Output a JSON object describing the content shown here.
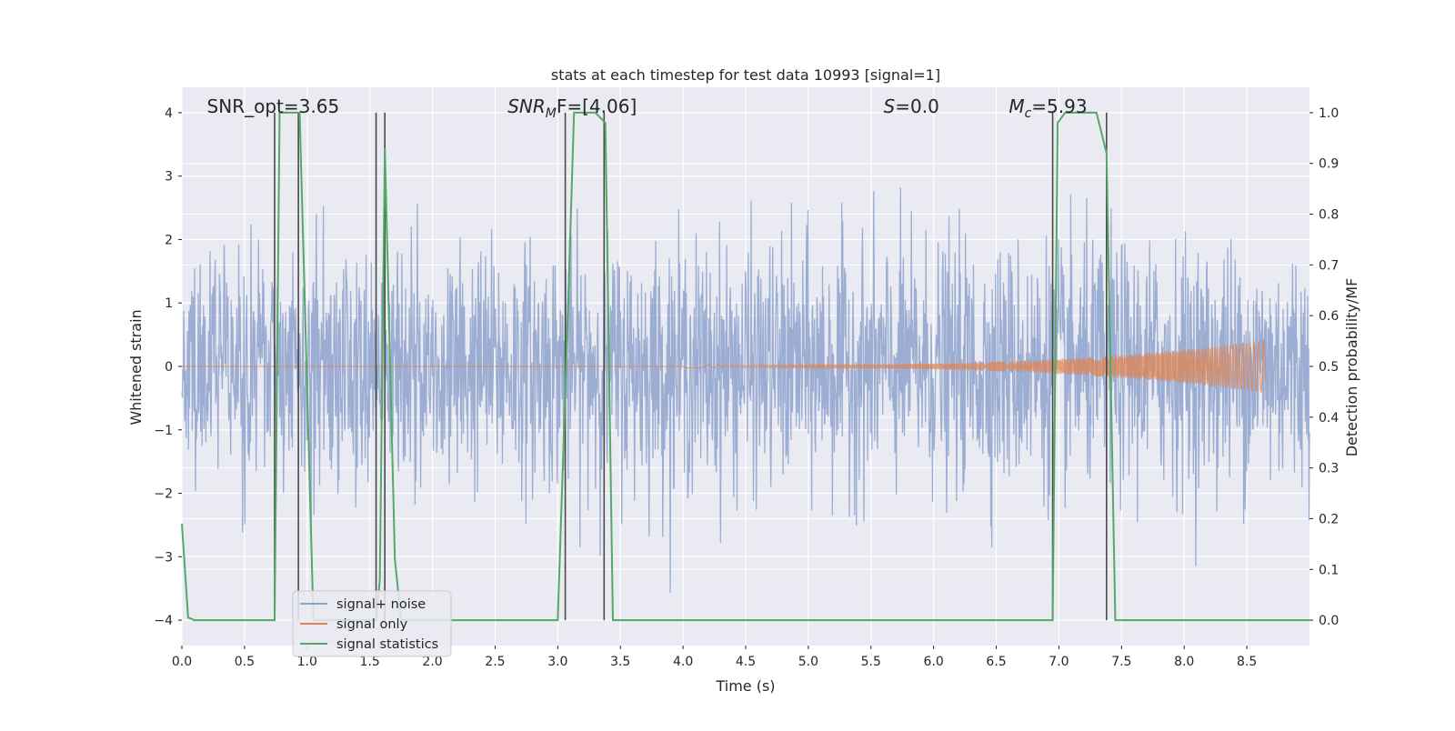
{
  "chart_data": {
    "type": "line",
    "title": "stats at each timestep for test data 10993 [signal=1]",
    "xlabel": "Time (s)",
    "ylabel_left": "Whitened strain",
    "ylabel_right": "Detection probability/MF",
    "xlim": [
      0.0,
      9.0
    ],
    "ylim_left": [
      -4.4,
      4.4
    ],
    "ylim_right": [
      -0.05,
      1.05
    ],
    "xticks": [
      "0.0",
      "0.5",
      "1.0",
      "1.5",
      "2.0",
      "2.5",
      "3.0",
      "3.5",
      "4.0",
      "4.5",
      "5.0",
      "5.5",
      "6.0",
      "6.5",
      "7.0",
      "7.5",
      "8.0",
      "8.5"
    ],
    "yticks_left": [
      "4",
      "3",
      "2",
      "1",
      "0",
      "−1",
      "−2",
      "−3",
      "−4"
    ],
    "yticks_right": [
      "1.0",
      "0.9",
      "0.8",
      "0.7",
      "0.6",
      "0.5",
      "0.4",
      "0.3",
      "0.2",
      "0.1",
      "0.0"
    ],
    "grid": true,
    "legend_position": "lower-left",
    "annotations": [
      {
        "text": "SNR_opt=3.65",
        "x": 0.2
      },
      {
        "main": "SNR",
        "sub": "M",
        "rest": "F=[4.06]",
        "x": 2.6
      },
      {
        "main": "S",
        "rest": "=0.0",
        "x": 5.6
      },
      {
        "main": "M",
        "sub": "c",
        "rest": "=5.93",
        "x": 6.6
      }
    ],
    "series": [
      {
        "name": "signal+ noise",
        "color": "#8da2cc",
        "kind": "noise",
        "envelope_std": 1.0,
        "x_range": [
          0.0,
          9.0
        ]
      },
      {
        "name": "signal only",
        "color": "#dd8452",
        "kind": "chirp",
        "x_start": 4.0,
        "x_end": 8.65,
        "max_amp": 0.4
      },
      {
        "name": "signal statistics",
        "color": "#55a868",
        "kind": "probability",
        "x": [
          0.0,
          0.05,
          0.1,
          0.74,
          0.78,
          0.82,
          0.9,
          0.94,
          1.05,
          1.55,
          1.58,
          1.62,
          1.7,
          1.75,
          3.0,
          3.08,
          3.13,
          3.3,
          3.38,
          3.44,
          6.95,
          6.99,
          7.05,
          7.3,
          7.38,
          7.45,
          9.0
        ],
        "y": [
          0.19,
          0.005,
          0.0,
          0.0,
          1.0,
          1.0,
          1.0,
          1.0,
          0.0,
          0.0,
          0.08,
          0.93,
          0.12,
          0.0,
          0.0,
          0.6,
          1.0,
          1.0,
          0.98,
          0.0,
          0.0,
          0.98,
          1.0,
          1.0,
          0.92,
          0.0,
          0.0
        ]
      }
    ],
    "vertical_lines_x": [
      0.74,
      0.93,
      1.55,
      1.62,
      3.06,
      3.37,
      6.95,
      7.38
    ],
    "vertical_line_color": "#4a4a4a"
  }
}
